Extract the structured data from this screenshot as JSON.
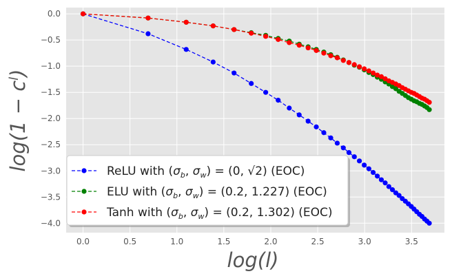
{
  "chart_data": {
    "type": "line",
    "xlabel": "log(l)",
    "ylabel": "log(1 − c",
    "ylabel_sup": "l",
    "ylabel_close": ")",
    "xlim": [
      -0.18,
      3.85
    ],
    "ylim": [
      -4.18,
      0.12
    ],
    "xticks": [
      "0.0",
      "0.5",
      "1.0",
      "1.5",
      "2.0",
      "2.5",
      "3.0",
      "3.5"
    ],
    "xtick_values": [
      0,
      0.5,
      1.0,
      1.5,
      2.0,
      2.5,
      3.0,
      3.5
    ],
    "yticks": [
      "0.0",
      "−0.5",
      "−1.0",
      "−1.5",
      "−2.0",
      "−2.5",
      "−3.0",
      "−3.5",
      "−4.0"
    ],
    "ytick_values": [
      0,
      -0.5,
      -1.0,
      -1.5,
      -2.0,
      -2.5,
      -3.0,
      -3.5,
      -4.0
    ],
    "grid": true,
    "legend_position": "lower-left",
    "series": [
      {
        "name": "ReLU with (σb, σw) = (0, √2) (EOC)",
        "legend_parts": [
          "ReLU with (",
          "σ",
          "b",
          ", ",
          "σ",
          "w",
          ") = (0, ",
          "√2",
          ") (EOC)"
        ],
        "color": "#0000ff",
        "x": [
          0,
          0.693,
          1.099,
          1.386,
          1.609,
          1.792,
          1.946,
          2.079,
          2.197,
          2.303,
          2.398,
          2.485,
          2.565,
          2.639,
          2.708,
          2.773,
          2.833,
          2.89,
          2.944,
          2.996,
          3.045,
          3.091,
          3.135,
          3.178,
          3.219,
          3.258,
          3.296,
          3.332,
          3.367,
          3.401,
          3.434,
          3.466,
          3.497,
          3.526,
          3.555,
          3.584,
          3.611,
          3.638,
          3.664,
          3.689
        ],
        "y": [
          0,
          -0.38,
          -0.68,
          -0.92,
          -1.13,
          -1.33,
          -1.5,
          -1.65,
          -1.8,
          -1.93,
          -2.05,
          -2.16,
          -2.27,
          -2.37,
          -2.47,
          -2.56,
          -2.65,
          -2.73,
          -2.81,
          -2.89,
          -2.96,
          -3.03,
          -3.1,
          -3.17,
          -3.23,
          -3.3,
          -3.36,
          -3.42,
          -3.47,
          -3.53,
          -3.58,
          -3.63,
          -3.68,
          -3.73,
          -3.78,
          -3.83,
          -3.87,
          -3.92,
          -3.96,
          -4.0
        ]
      },
      {
        "name": "ELU with (σb, σw) = (0.2, 1.227) (EOC)",
        "legend_parts": [
          "ELU with (",
          "σ",
          "b",
          ", ",
          "σ",
          "w",
          ") = (0.2, 1.227) (EOC)"
        ],
        "color": "#008000",
        "x": [
          0,
          0.693,
          1.099,
          1.386,
          1.609,
          1.792,
          1.946,
          2.079,
          2.197,
          2.303,
          2.398,
          2.485,
          2.565,
          2.639,
          2.708,
          2.773,
          2.833,
          2.89,
          2.944,
          2.996,
          3.045,
          3.091,
          3.135,
          3.178,
          3.219,
          3.258,
          3.296,
          3.332,
          3.367,
          3.401,
          3.434,
          3.466,
          3.497,
          3.526,
          3.555,
          3.584,
          3.611,
          3.638,
          3.664,
          3.689
        ],
        "y": [
          0,
          -0.08,
          -0.16,
          -0.23,
          -0.3,
          -0.36,
          -0.41,
          -0.47,
          -0.52,
          -0.58,
          -0.63,
          -0.68,
          -0.73,
          -0.78,
          -0.83,
          -0.88,
          -0.93,
          -0.98,
          -1.02,
          -1.07,
          -1.12,
          -1.16,
          -1.21,
          -1.25,
          -1.3,
          -1.34,
          -1.39,
          -1.43,
          -1.48,
          -1.52,
          -1.56,
          -1.6,
          -1.63,
          -1.66,
          -1.68,
          -1.71,
          -1.73,
          -1.76,
          -1.79,
          -1.83
        ]
      },
      {
        "name": "Tanh with (σb, σw) = (0.2, 1.302) (EOC)",
        "legend_parts": [
          "Tanh with (",
          "σ",
          "b",
          ", ",
          "σ",
          "w",
          ") = (0.2, 1.302) (EOC)"
        ],
        "color": "#ff0000",
        "x": [
          0,
          0.693,
          1.099,
          1.386,
          1.609,
          1.792,
          1.946,
          2.079,
          2.197,
          2.303,
          2.398,
          2.485,
          2.565,
          2.639,
          2.708,
          2.773,
          2.833,
          2.89,
          2.944,
          2.996,
          3.045,
          3.091,
          3.135,
          3.178,
          3.219,
          3.258,
          3.296,
          3.332,
          3.367,
          3.401,
          3.434,
          3.466,
          3.497,
          3.526,
          3.555,
          3.584,
          3.611,
          3.638,
          3.664,
          3.689
        ],
        "y": [
          0,
          -0.08,
          -0.16,
          -0.23,
          -0.3,
          -0.37,
          -0.43,
          -0.49,
          -0.55,
          -0.6,
          -0.65,
          -0.7,
          -0.75,
          -0.8,
          -0.84,
          -0.89,
          -0.93,
          -0.97,
          -1.01,
          -1.05,
          -1.09,
          -1.13,
          -1.17,
          -1.2,
          -1.24,
          -1.28,
          -1.31,
          -1.34,
          -1.37,
          -1.41,
          -1.44,
          -1.47,
          -1.5,
          -1.52,
          -1.55,
          -1.58,
          -1.61,
          -1.63,
          -1.66,
          -1.69
        ]
      }
    ]
  }
}
